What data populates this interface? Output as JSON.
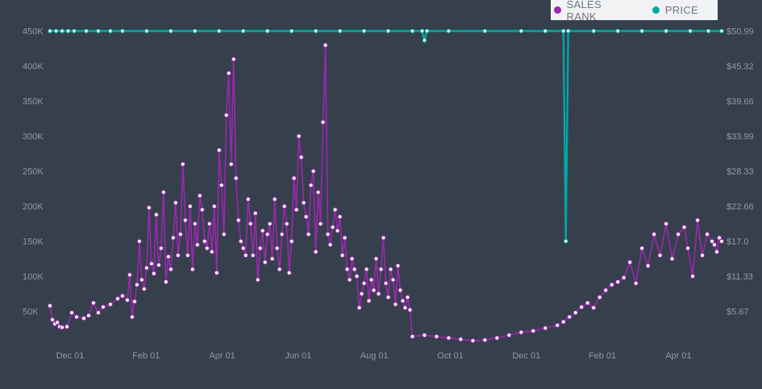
{
  "legend": {
    "items": [
      {
        "label": "SALES RANK",
        "color": "#9c27b0"
      },
      {
        "label": "PRICE",
        "color": "#00a7a0"
      }
    ]
  },
  "chart_data": [
    {
      "type": "line",
      "name": "sales-rank",
      "x_ticks": [
        "Dec 01",
        "Feb 01",
        "Apr 01",
        "Jun 01",
        "Aug 01",
        "Oct 01",
        "Dec 01",
        "Feb 01",
        "Apr 01"
      ],
      "y_ticks": [
        "50K",
        "100K",
        "150K",
        "200K",
        "250K",
        "300K",
        "350K",
        "400K",
        "450K"
      ],
      "y_tick_values": [
        50000,
        100000,
        150000,
        200000,
        250000,
        300000,
        350000,
        400000,
        450000
      ],
      "ylim": [
        0,
        460000
      ],
      "color": "#9c27b0",
      "points": [
        [
          0,
          58000
        ],
        [
          2,
          38000
        ],
        [
          4,
          32000
        ],
        [
          6,
          34000
        ],
        [
          8,
          28000
        ],
        [
          10,
          27000
        ],
        [
          14,
          28000
        ],
        [
          18,
          48000
        ],
        [
          22,
          42000
        ],
        [
          28,
          40000
        ],
        [
          32,
          44000
        ],
        [
          36,
          62000
        ],
        [
          40,
          48000
        ],
        [
          44,
          56000
        ],
        [
          50,
          60000
        ],
        [
          56,
          68000
        ],
        [
          60,
          72000
        ],
        [
          64,
          66000
        ],
        [
          66,
          102000
        ],
        [
          68,
          42000
        ],
        [
          70,
          64000
        ],
        [
          72,
          88000
        ],
        [
          74,
          150000
        ],
        [
          76,
          95000
        ],
        [
          78,
          82000
        ],
        [
          80,
          112000
        ],
        [
          82,
          198000
        ],
        [
          84,
          118000
        ],
        [
          86,
          104000
        ],
        [
          88,
          188000
        ],
        [
          90,
          116000
        ],
        [
          92,
          140000
        ],
        [
          94,
          220000
        ],
        [
          96,
          92000
        ],
        [
          98,
          128000
        ],
        [
          100,
          110000
        ],
        [
          102,
          155000
        ],
        [
          104,
          205000
        ],
        [
          106,
          130000
        ],
        [
          108,
          160000
        ],
        [
          110,
          260000
        ],
        [
          112,
          180000
        ],
        [
          114,
          130000
        ],
        [
          116,
          200000
        ],
        [
          118,
          110000
        ],
        [
          120,
          175000
        ],
        [
          122,
          145000
        ],
        [
          124,
          215000
        ],
        [
          126,
          195000
        ],
        [
          128,
          150000
        ],
        [
          130,
          140000
        ],
        [
          132,
          175000
        ],
        [
          134,
          135000
        ],
        [
          136,
          200000
        ],
        [
          138,
          105000
        ],
        [
          140,
          280000
        ],
        [
          142,
          230000
        ],
        [
          144,
          160000
        ],
        [
          146,
          330000
        ],
        [
          148,
          390000
        ],
        [
          150,
          260000
        ],
        [
          152,
          410000
        ],
        [
          154,
          240000
        ],
        [
          156,
          180000
        ],
        [
          158,
          150000
        ],
        [
          160,
          140000
        ],
        [
          162,
          130000
        ],
        [
          164,
          210000
        ],
        [
          166,
          175000
        ],
        [
          168,
          130000
        ],
        [
          170,
          190000
        ],
        [
          172,
          95000
        ],
        [
          174,
          140000
        ],
        [
          176,
          165000
        ],
        [
          178,
          120000
        ],
        [
          180,
          160000
        ],
        [
          182,
          175000
        ],
        [
          184,
          125000
        ],
        [
          186,
          210000
        ],
        [
          188,
          140000
        ],
        [
          190,
          110000
        ],
        [
          192,
          160000
        ],
        [
          194,
          200000
        ],
        [
          196,
          175000
        ],
        [
          198,
          105000
        ],
        [
          200,
          150000
        ],
        [
          202,
          240000
        ],
        [
          204,
          195000
        ],
        [
          206,
          300000
        ],
        [
          208,
          270000
        ],
        [
          210,
          205000
        ],
        [
          212,
          185000
        ],
        [
          214,
          160000
        ],
        [
          216,
          230000
        ],
        [
          218,
          250000
        ],
        [
          220,
          135000
        ],
        [
          222,
          220000
        ],
        [
          224,
          175000
        ],
        [
          226,
          320000
        ],
        [
          228,
          430000
        ],
        [
          230,
          160000
        ],
        [
          232,
          145000
        ],
        [
          234,
          170000
        ],
        [
          236,
          195000
        ],
        [
          238,
          165000
        ],
        [
          240,
          185000
        ],
        [
          242,
          130000
        ],
        [
          244,
          155000
        ],
        [
          246,
          110000
        ],
        [
          248,
          95000
        ],
        [
          250,
          125000
        ],
        [
          252,
          110000
        ],
        [
          254,
          100000
        ],
        [
          256,
          55000
        ],
        [
          258,
          75000
        ],
        [
          260,
          90000
        ],
        [
          262,
          110000
        ],
        [
          264,
          65000
        ],
        [
          266,
          95000
        ],
        [
          268,
          80000
        ],
        [
          270,
          125000
        ],
        [
          272,
          75000
        ],
        [
          274,
          110000
        ],
        [
          276,
          155000
        ],
        [
          278,
          90000
        ],
        [
          280,
          70000
        ],
        [
          282,
          110000
        ],
        [
          284,
          95000
        ],
        [
          286,
          60000
        ],
        [
          288,
          115000
        ],
        [
          290,
          80000
        ],
        [
          292,
          65000
        ],
        [
          294,
          55000
        ],
        [
          296,
          70000
        ],
        [
          298,
          52000
        ],
        [
          300,
          14000
        ],
        [
          310,
          16000
        ],
        [
          320,
          14000
        ],
        [
          330,
          12000
        ],
        [
          340,
          10000
        ],
        [
          350,
          8000
        ],
        [
          360,
          9000
        ],
        [
          370,
          12000
        ],
        [
          380,
          16000
        ],
        [
          390,
          20000
        ],
        [
          400,
          22000
        ],
        [
          410,
          26000
        ],
        [
          420,
          30000
        ],
        [
          425,
          35000
        ],
        [
          430,
          42000
        ],
        [
          435,
          48000
        ],
        [
          440,
          56000
        ],
        [
          445,
          62000
        ],
        [
          450,
          55000
        ],
        [
          455,
          70000
        ],
        [
          460,
          80000
        ],
        [
          465,
          88000
        ],
        [
          470,
          92000
        ],
        [
          475,
          98000
        ],
        [
          480,
          120000
        ],
        [
          485,
          90000
        ],
        [
          490,
          140000
        ],
        [
          495,
          115000
        ],
        [
          500,
          160000
        ],
        [
          505,
          130000
        ],
        [
          510,
          175000
        ],
        [
          515,
          125000
        ],
        [
          520,
          160000
        ],
        [
          525,
          170000
        ],
        [
          528,
          140000
        ],
        [
          532,
          100000
        ],
        [
          536,
          180000
        ],
        [
          540,
          130000
        ],
        [
          544,
          160000
        ],
        [
          548,
          150000
        ],
        [
          550,
          145000
        ],
        [
          552,
          135000
        ],
        [
          554,
          155000
        ],
        [
          556,
          150000
        ]
      ]
    },
    {
      "type": "line",
      "name": "price",
      "y_ticks": [
        "$5.67",
        "$11.33",
        "$17.0",
        "$22.66",
        "$28.33",
        "$33.99",
        "$39.66",
        "$45.32",
        "$50.99"
      ],
      "y_tick_values": [
        5.67,
        11.33,
        17.0,
        22.66,
        28.33,
        33.99,
        39.66,
        45.32,
        50.99
      ],
      "ylim": [
        0,
        52.1
      ],
      "color": "#00a7a0",
      "points": [
        [
          0,
          50.99
        ],
        [
          5,
          50.99
        ],
        [
          10,
          50.99
        ],
        [
          15,
          50.99
        ],
        [
          20,
          50.99
        ],
        [
          30,
          50.99
        ],
        [
          40,
          50.99
        ],
        [
          50,
          50.99
        ],
        [
          60,
          50.99
        ],
        [
          80,
          50.99
        ],
        [
          100,
          50.99
        ],
        [
          120,
          50.99
        ],
        [
          140,
          50.99
        ],
        [
          160,
          50.99
        ],
        [
          180,
          50.99
        ],
        [
          200,
          50.99
        ],
        [
          220,
          50.99
        ],
        [
          240,
          50.99
        ],
        [
          260,
          50.99
        ],
        [
          280,
          50.99
        ],
        [
          300,
          50.99
        ],
        [
          308,
          50.99
        ],
        [
          310,
          49.5
        ],
        [
          312,
          50.99
        ],
        [
          330,
          50.99
        ],
        [
          360,
          50.99
        ],
        [
          390,
          50.99
        ],
        [
          410,
          50.99
        ],
        [
          425,
          50.99
        ],
        [
          427,
          17.0
        ],
        [
          429,
          50.99
        ],
        [
          450,
          50.99
        ],
        [
          470,
          50.99
        ],
        [
          490,
          50.99
        ],
        [
          510,
          50.99
        ],
        [
          530,
          50.99
        ],
        [
          545,
          50.99
        ],
        [
          556,
          50.99
        ]
      ]
    }
  ]
}
